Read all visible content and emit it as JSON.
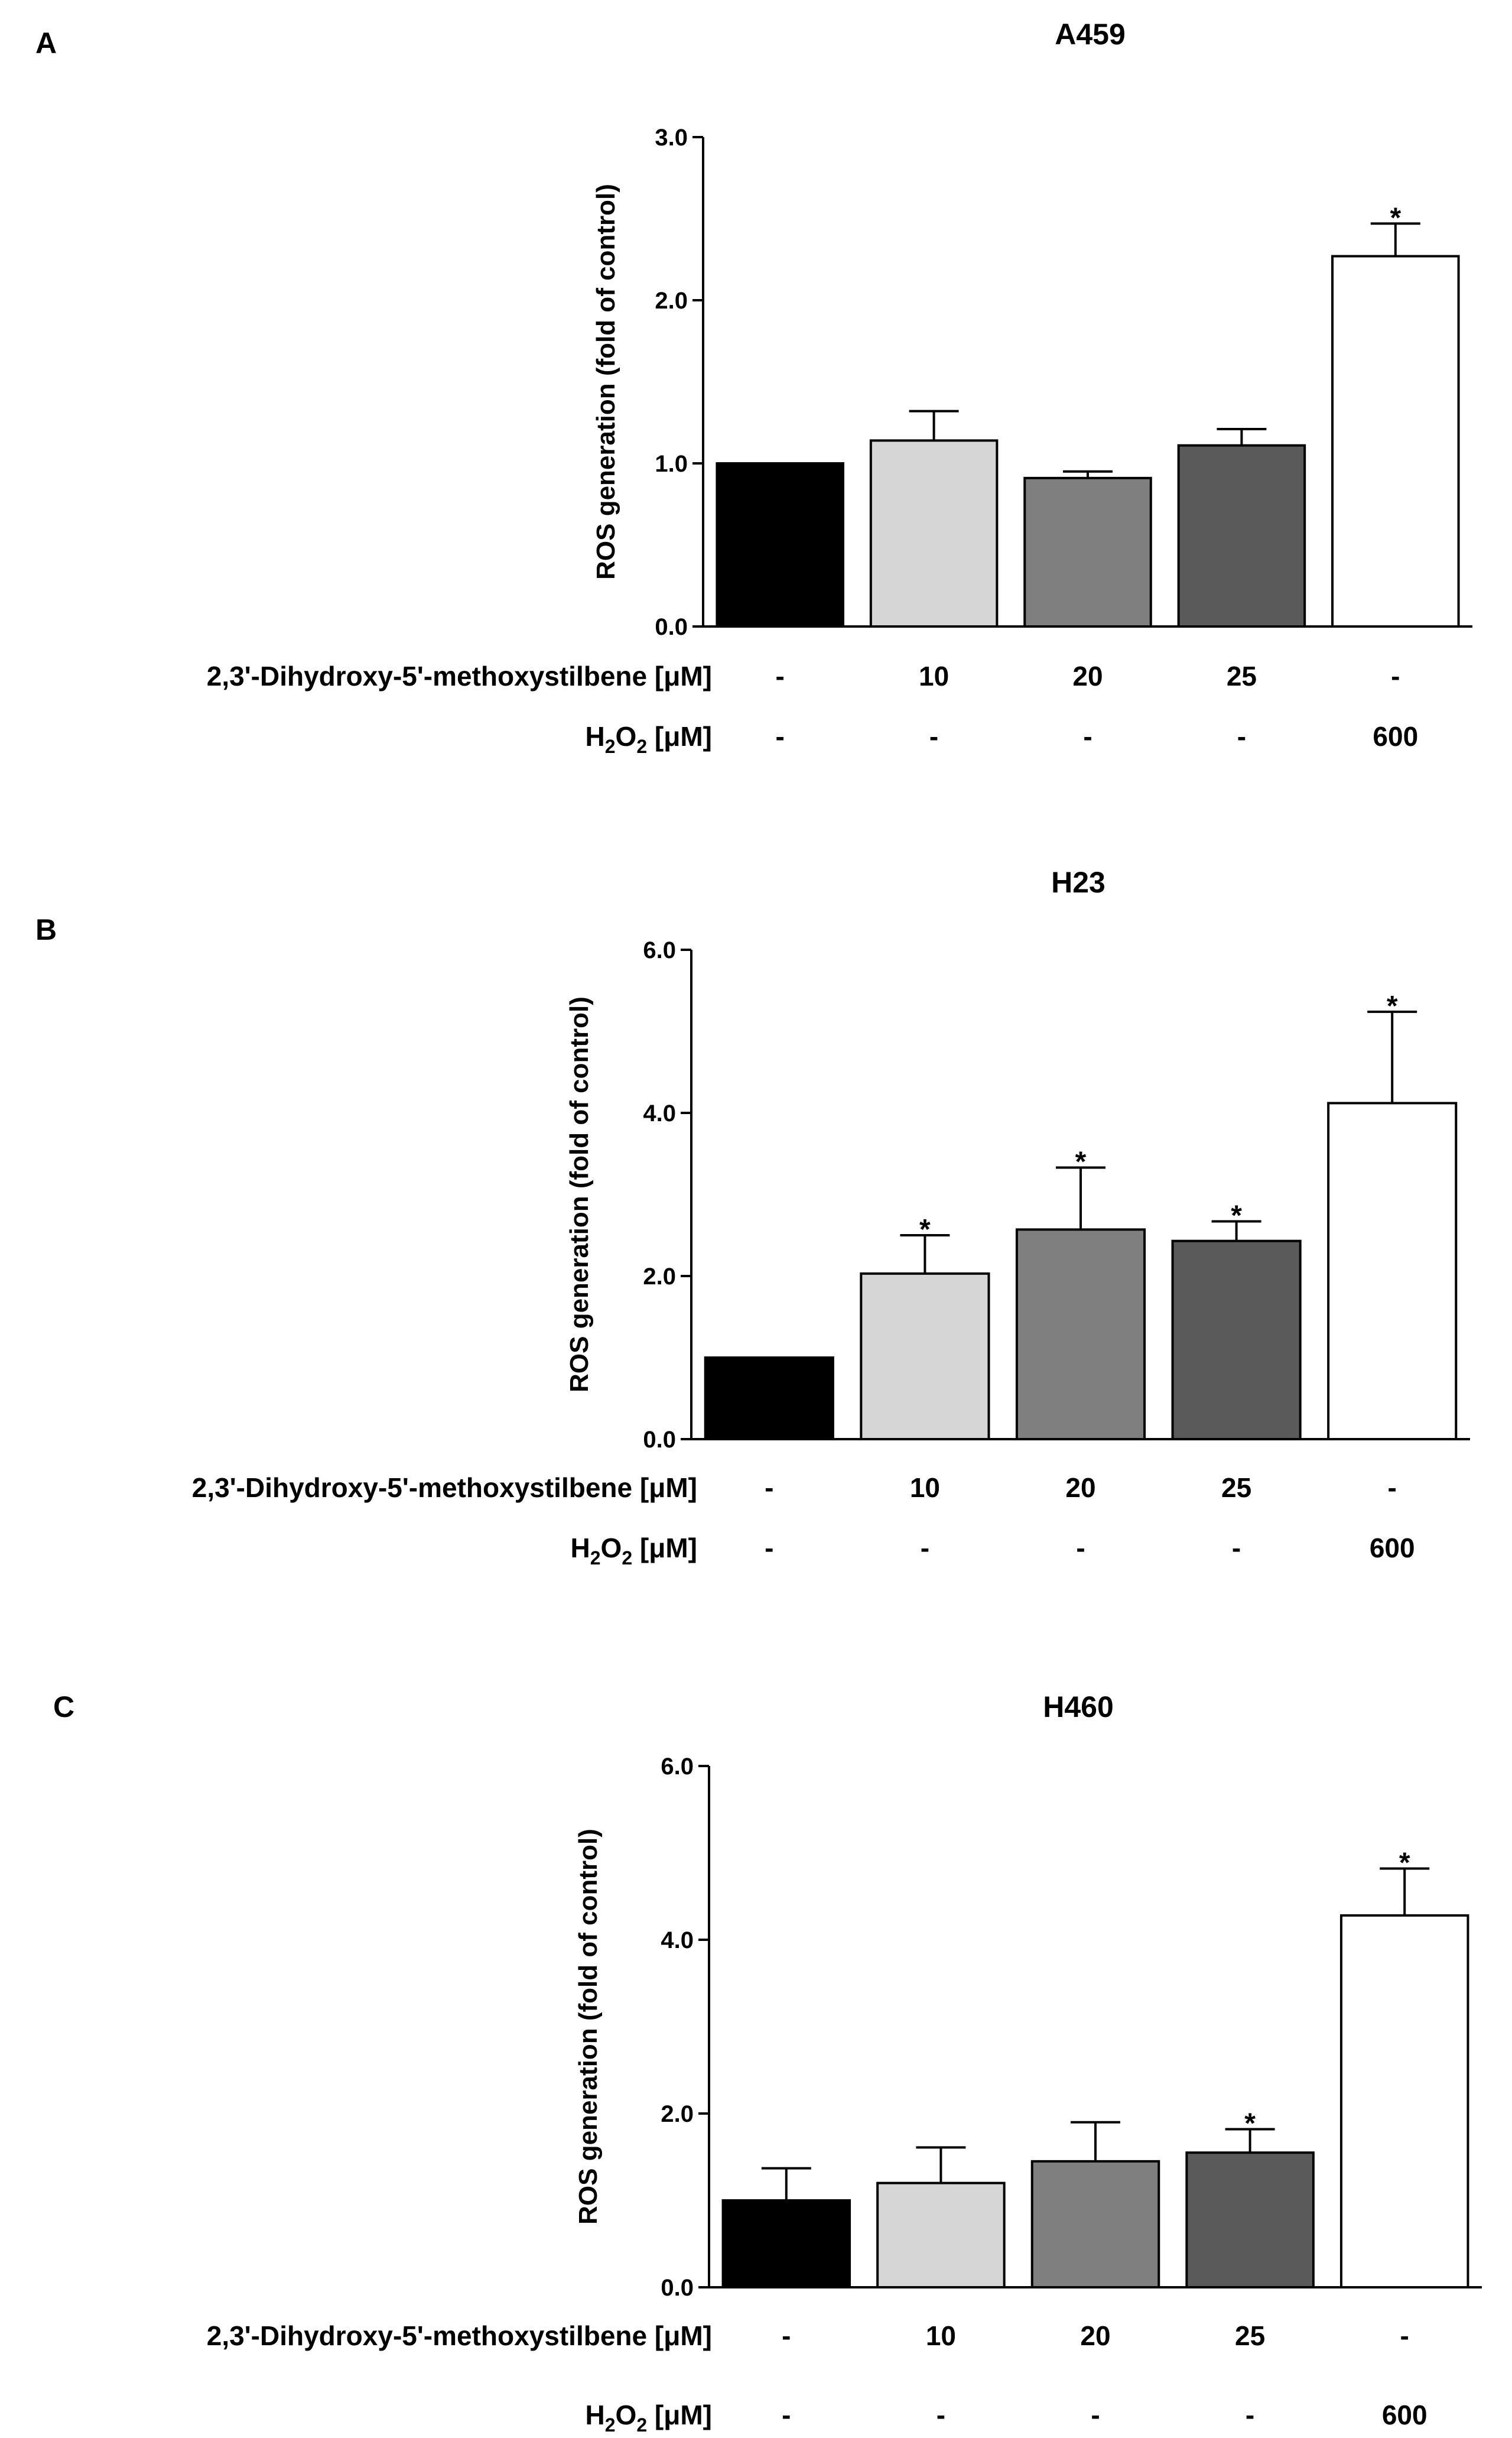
{
  "figure": {
    "row_labels": {
      "compound_prefix": "2,3'-Dihydroxy-5'-methoxystilbene [",
      "mu": "μ",
      "unit_suffix": "M]",
      "h2o2_H": "H",
      "h2o2_sub2": "2",
      "h2o2_O": "O",
      "h2o2_unit": " [μM]"
    }
  },
  "colors": {
    "bar_fills": [
      "#000000",
      "#d6d6d6",
      "#7f7f7f",
      "#5a5a5a",
      "#ffffff"
    ],
    "stroke": "#000000"
  },
  "chart_data": [
    {
      "type": "bar",
      "panel": "A",
      "title": "A459",
      "ylabel": "ROS generation (fold of control)",
      "ylim": [
        0,
        3.0
      ],
      "yticks": [
        "0.0",
        "1.0",
        "2.0",
        "3.0"
      ],
      "yticks_values": [
        0,
        1,
        2,
        3
      ],
      "values": [
        1.0,
        1.14,
        0.91,
        1.11,
        2.27
      ],
      "errors": [
        0.0,
        0.18,
        0.04,
        0.1,
        0.2
      ],
      "significant": [
        false,
        false,
        false,
        false,
        true
      ],
      "sig_marker": "*",
      "compound_row": [
        "-",
        "10",
        "20",
        "25",
        "-"
      ],
      "h2o2_row": [
        "-",
        "-",
        "-",
        "-",
        "600"
      ]
    },
    {
      "type": "bar",
      "panel": "B",
      "title": "H23",
      "ylabel": "ROS generation (fold of control)",
      "ylim": [
        0,
        6.0
      ],
      "yticks": [
        "0.0",
        "2.0",
        "4.0",
        "6.0"
      ],
      "yticks_values": [
        0,
        2,
        4,
        6
      ],
      "values": [
        1.0,
        2.03,
        2.57,
        2.43,
        4.12
      ],
      "errors": [
        0.0,
        0.47,
        0.76,
        0.24,
        1.12
      ],
      "significant": [
        false,
        true,
        true,
        true,
        true
      ],
      "sig_marker": "*",
      "compound_row": [
        "-",
        "10",
        "20",
        "25",
        "-"
      ],
      "h2o2_row": [
        "-",
        "-",
        "-",
        "-",
        "600"
      ]
    },
    {
      "type": "bar",
      "panel": "C",
      "title": "H460",
      "ylabel": "ROS generation (fold of control)",
      "ylim": [
        0,
        6.0
      ],
      "yticks": [
        "0.0",
        "2.0",
        "4.0",
        "6.0"
      ],
      "yticks_values": [
        0,
        2,
        4,
        6
      ],
      "values": [
        1.0,
        1.2,
        1.45,
        1.55,
        4.28
      ],
      "errors": [
        0.37,
        0.41,
        0.45,
        0.27,
        0.54
      ],
      "significant": [
        false,
        false,
        false,
        true,
        true
      ],
      "sig_marker": "*",
      "compound_row": [
        "-",
        "10",
        "20",
        "25",
        "-"
      ],
      "h2o2_row": [
        "-",
        "-",
        "-",
        "-",
        "600"
      ]
    }
  ]
}
